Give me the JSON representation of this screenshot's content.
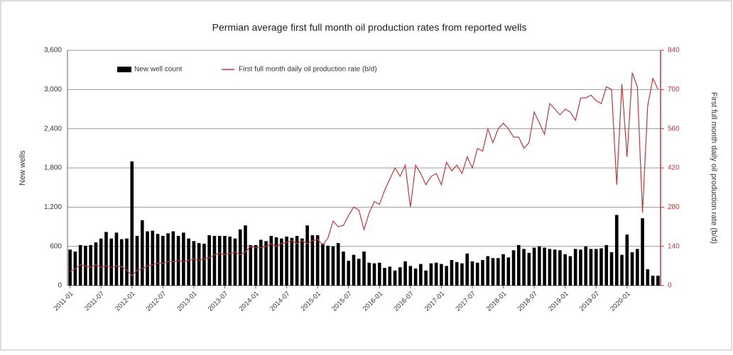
{
  "chart_data": {
    "type": "bar_line",
    "title": "Permian average first full month oil production rates from reported wells",
    "y_label": "New wells",
    "y2_label": "First full month daily oil production rate (b/d)",
    "categories": [
      "2011-01",
      null,
      null,
      null,
      null,
      null,
      "2011-07",
      null,
      null,
      null,
      null,
      null,
      "2012-01",
      null,
      null,
      null,
      null,
      null,
      "2012-07",
      null,
      null,
      null,
      null,
      null,
      "2013-01",
      null,
      null,
      null,
      null,
      null,
      "2013-07",
      null,
      null,
      null,
      null,
      null,
      "2014-01",
      null,
      null,
      null,
      null,
      null,
      "2014-07",
      null,
      null,
      null,
      null,
      null,
      "2015-01",
      null,
      null,
      null,
      null,
      null,
      "2015-07",
      null,
      null,
      null,
      null,
      null,
      "2016-01",
      null,
      null,
      null,
      null,
      null,
      "2016-07",
      null,
      null,
      null,
      null,
      null,
      "2017-01",
      null,
      null,
      null,
      null,
      null,
      "2017-07",
      null,
      null,
      null,
      null,
      null,
      "2018-01",
      null,
      null,
      null,
      null,
      null,
      "2018-07",
      null,
      null,
      null,
      null,
      null,
      "2019-01",
      null,
      null,
      null,
      null,
      null,
      "2019-07",
      null,
      null,
      null,
      null,
      null,
      "2020-01",
      null,
      null,
      null,
      null,
      null,
      null
    ],
    "series": [
      {
        "name": "New well count",
        "color": "#000000",
        "values": [
          550,
          520,
          620,
          610,
          620,
          660,
          720,
          820,
          720,
          810,
          710,
          720,
          1900,
          760,
          1000,
          830,
          840,
          790,
          760,
          800,
          830,
          760,
          810,
          720,
          680,
          650,
          640,
          770,
          760,
          760,
          760,
          750,
          720,
          860,
          920,
          620,
          620,
          700,
          680,
          760,
          740,
          720,
          750,
          730,
          760,
          720,
          920,
          770,
          770,
          640,
          610,
          600,
          650,
          520,
          380,
          470,
          410,
          520,
          350,
          340,
          350,
          270,
          290,
          230,
          280,
          370,
          300,
          260,
          330,
          230,
          340,
          350,
          330,
          300,
          390,
          360,
          340,
          490,
          370,
          350,
          390,
          450,
          420,
          420,
          480,
          430,
          540,
          620,
          560,
          500,
          580,
          600,
          580,
          560,
          550,
          540,
          480,
          450,
          560,
          550,
          600,
          560,
          560,
          570,
          620,
          510,
          1080,
          470,
          780,
          510,
          560,
          1030,
          250,
          150,
          150
        ]
      },
      {
        "name": "First full month daily oil production rate (b/d)",
        "color": "#c0393b",
        "axis": "y2",
        "values": [
          50,
          60,
          75,
          70,
          65,
          75,
          65,
          70,
          65,
          70,
          68,
          55,
          35,
          55,
          60,
          70,
          75,
          80,
          80,
          85,
          85,
          90,
          85,
          90,
          95,
          90,
          95,
          100,
          110,
          115,
          110,
          115,
          120,
          110,
          120,
          140,
          135,
          135,
          140,
          150,
          140,
          150,
          155,
          160,
          150,
          160,
          150,
          160,
          165,
          145,
          170,
          230,
          210,
          215,
          250,
          280,
          270,
          200,
          260,
          300,
          290,
          340,
          380,
          420,
          390,
          430,
          280,
          430,
          400,
          360,
          390,
          400,
          360,
          440,
          410,
          430,
          400,
          460,
          420,
          490,
          480,
          560,
          510,
          560,
          580,
          560,
          530,
          530,
          490,
          510,
          620,
          580,
          540,
          650,
          630,
          610,
          630,
          620,
          590,
          670,
          670,
          680,
          660,
          650,
          710,
          700,
          360,
          720,
          460,
          760,
          710,
          260,
          640,
          740,
          700
        ]
      }
    ],
    "ylim": [
      0,
      3600
    ],
    "yticks": [
      0,
      600,
      {
        "value": 1200,
        "label": "1,200"
      },
      {
        "value": 1800,
        "label": "1,800"
      },
      {
        "value": 2400,
        "label": "2,400"
      },
      {
        "value": 3000,
        "label": "3,000"
      },
      {
        "value": 3600,
        "label": "3,600"
      }
    ],
    "y2lim": [
      0,
      840
    ],
    "y2ticks": [
      0,
      140,
      280,
      420,
      560,
      700,
      840
    ],
    "grid": true
  }
}
